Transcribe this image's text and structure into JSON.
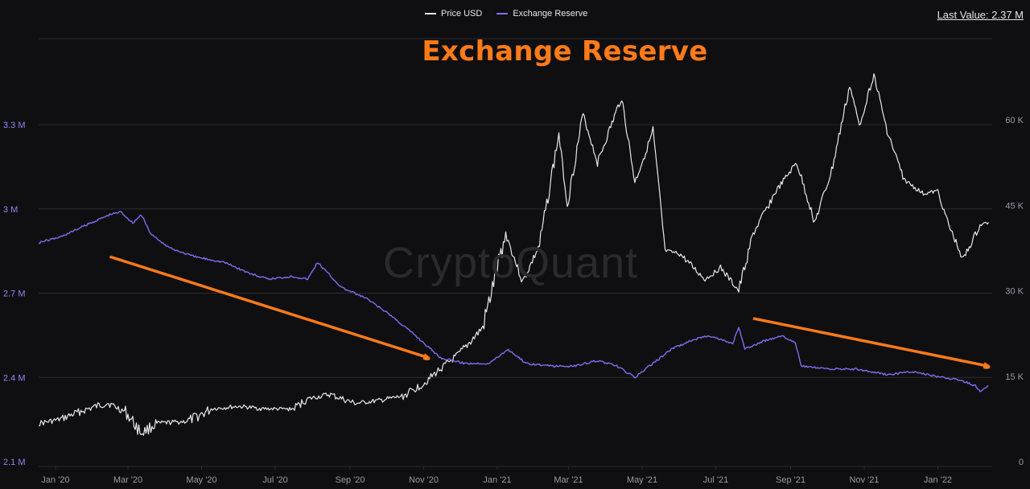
{
  "legend": {
    "price_label": "Price USD",
    "reserve_label": "Exchange Reserve"
  },
  "last_value": "Last Value: 2.37 M",
  "title": "Exchange Reserve",
  "watermark": "CryptoQuant",
  "colors": {
    "background": "#0f0f11",
    "price": "#e8e8ec",
    "reserve": "#7c6ff0",
    "annotation": "#ff7a18",
    "grid": "#2a2a32",
    "axis_text": "#9a9aa8",
    "left_axis_text": "#8f86f5"
  },
  "chart_data": {
    "type": "line",
    "title": "Exchange Reserve",
    "x_tick_labels": [
      "Jan '20",
      "Mar '20",
      "May '20",
      "Jul '20",
      "Sep '20",
      "Nov '20",
      "Jan '21",
      "Mar '21",
      "May '21",
      "Jul '21",
      "Sep '21",
      "Nov '21",
      "Jan '22"
    ],
    "x_range": [
      "2019-12-18",
      "2022-02-15"
    ],
    "y_left": {
      "label": "",
      "ticks": [
        "2.1 M",
        "2.4 M",
        "2.7 M",
        "3 M",
        "3.3 M"
      ],
      "range": [
        2.1,
        3.3
      ]
    },
    "y_right": {
      "label": "",
      "ticks": [
        "0",
        "15 K",
        "30 K",
        "45 K",
        "60 K"
      ],
      "range": [
        0,
        60000
      ]
    },
    "grid": true,
    "legend_position": "top",
    "series": [
      {
        "name": "Exchange Reserve",
        "axis": "left",
        "unit": "M",
        "points": [
          [
            "2019-12-18",
            2.88
          ],
          [
            "2020-01-05",
            2.9
          ],
          [
            "2020-01-25",
            2.94
          ],
          [
            "2020-02-15",
            2.98
          ],
          [
            "2020-02-24",
            2.99
          ],
          [
            "2020-03-05",
            2.95
          ],
          [
            "2020-03-12",
            2.98
          ],
          [
            "2020-03-20",
            2.91
          ],
          [
            "2020-04-05",
            2.86
          ],
          [
            "2020-04-25",
            2.83
          ],
          [
            "2020-05-20",
            2.81
          ],
          [
            "2020-06-10",
            2.77
          ],
          [
            "2020-06-25",
            2.75
          ],
          [
            "2020-07-15",
            2.76
          ],
          [
            "2020-07-28",
            2.75
          ],
          [
            "2020-08-05",
            2.81
          ],
          [
            "2020-08-25",
            2.72
          ],
          [
            "2020-09-15",
            2.68
          ],
          [
            "2020-10-05",
            2.62
          ],
          [
            "2020-10-25",
            2.55
          ],
          [
            "2020-11-15",
            2.47
          ],
          [
            "2020-12-05",
            2.45
          ],
          [
            "2020-12-25",
            2.45
          ],
          [
            "2021-01-10",
            2.5
          ],
          [
            "2021-01-25",
            2.45
          ],
          [
            "2021-02-15",
            2.44
          ],
          [
            "2021-03-05",
            2.44
          ],
          [
            "2021-03-25",
            2.46
          ],
          [
            "2021-04-10",
            2.44
          ],
          [
            "2021-04-25",
            2.4
          ],
          [
            "2021-05-10",
            2.45
          ],
          [
            "2021-05-25",
            2.5
          ],
          [
            "2021-06-10",
            2.53
          ],
          [
            "2021-06-25",
            2.55
          ],
          [
            "2021-07-15",
            2.52
          ],
          [
            "2021-07-20",
            2.58
          ],
          [
            "2021-07-25",
            2.5
          ],
          [
            "2021-08-10",
            2.53
          ],
          [
            "2021-08-25",
            2.55
          ],
          [
            "2021-09-05",
            2.52
          ],
          [
            "2021-09-10",
            2.44
          ],
          [
            "2021-10-01",
            2.43
          ],
          [
            "2021-10-25",
            2.43
          ],
          [
            "2021-11-20",
            2.41
          ],
          [
            "2021-12-10",
            2.42
          ],
          [
            "2022-01-05",
            2.4
          ],
          [
            "2022-01-20",
            2.39
          ],
          [
            "2022-02-01",
            2.37
          ],
          [
            "2022-02-05",
            2.35
          ],
          [
            "2022-02-12",
            2.37
          ]
        ]
      },
      {
        "name": "Price USD",
        "axis": "right",
        "unit": "USD",
        "points": [
          [
            "2019-12-18",
            6700
          ],
          [
            "2020-01-05",
            7400
          ],
          [
            "2020-01-20",
            8700
          ],
          [
            "2020-02-13",
            10300
          ],
          [
            "2020-02-28",
            8700
          ],
          [
            "2020-03-12",
            5000
          ],
          [
            "2020-03-25",
            6700
          ],
          [
            "2020-04-20",
            7100
          ],
          [
            "2020-05-10",
            9300
          ],
          [
            "2020-06-01",
            9700
          ],
          [
            "2020-06-20",
            9300
          ],
          [
            "2020-07-15",
            9200
          ],
          [
            "2020-07-28",
            11000
          ],
          [
            "2020-08-15",
            11800
          ],
          [
            "2020-09-05",
            10200
          ],
          [
            "2020-09-25",
            10700
          ],
          [
            "2020-10-15",
            11500
          ],
          [
            "2020-11-01",
            13700
          ],
          [
            "2020-11-15",
            16300
          ],
          [
            "2020-12-01",
            19000
          ],
          [
            "2020-12-20",
            23500
          ],
          [
            "2021-01-08",
            40000
          ],
          [
            "2021-01-22",
            31500
          ],
          [
            "2021-02-05",
            38000
          ],
          [
            "2021-02-21",
            57500
          ],
          [
            "2021-02-28",
            45000
          ],
          [
            "2021-03-13",
            61000
          ],
          [
            "2021-03-25",
            52500
          ],
          [
            "2021-04-14",
            64000
          ],
          [
            "2021-04-25",
            49000
          ],
          [
            "2021-05-10",
            58000
          ],
          [
            "2021-05-20",
            37000
          ],
          [
            "2021-06-01",
            36500
          ],
          [
            "2021-06-22",
            32000
          ],
          [
            "2021-07-05",
            34000
          ],
          [
            "2021-07-20",
            30000
          ],
          [
            "2021-08-01",
            40000
          ],
          [
            "2021-08-20",
            47500
          ],
          [
            "2021-09-06",
            52500
          ],
          [
            "2021-09-21",
            42000
          ],
          [
            "2021-10-05",
            51000
          ],
          [
            "2021-10-20",
            66000
          ],
          [
            "2021-10-28",
            59000
          ],
          [
            "2021-11-09",
            68000
          ],
          [
            "2021-11-20",
            58000
          ],
          [
            "2021-12-04",
            49500
          ],
          [
            "2021-12-20",
            47000
          ],
          [
            "2022-01-01",
            47500
          ],
          [
            "2022-01-10",
            41500
          ],
          [
            "2022-01-22",
            35500
          ],
          [
            "2022-02-05",
            41500
          ],
          [
            "2022-02-12",
            42000
          ]
        ]
      }
    ],
    "annotations": [
      {
        "type": "arrow",
        "from": [
          "2020-02-15",
          2.83
        ],
        "to": [
          "2020-11-05",
          2.47
        ]
      },
      {
        "type": "arrow",
        "from": [
          "2021-08-01",
          2.61
        ],
        "to": [
          "2022-02-12",
          2.44
        ]
      }
    ]
  }
}
